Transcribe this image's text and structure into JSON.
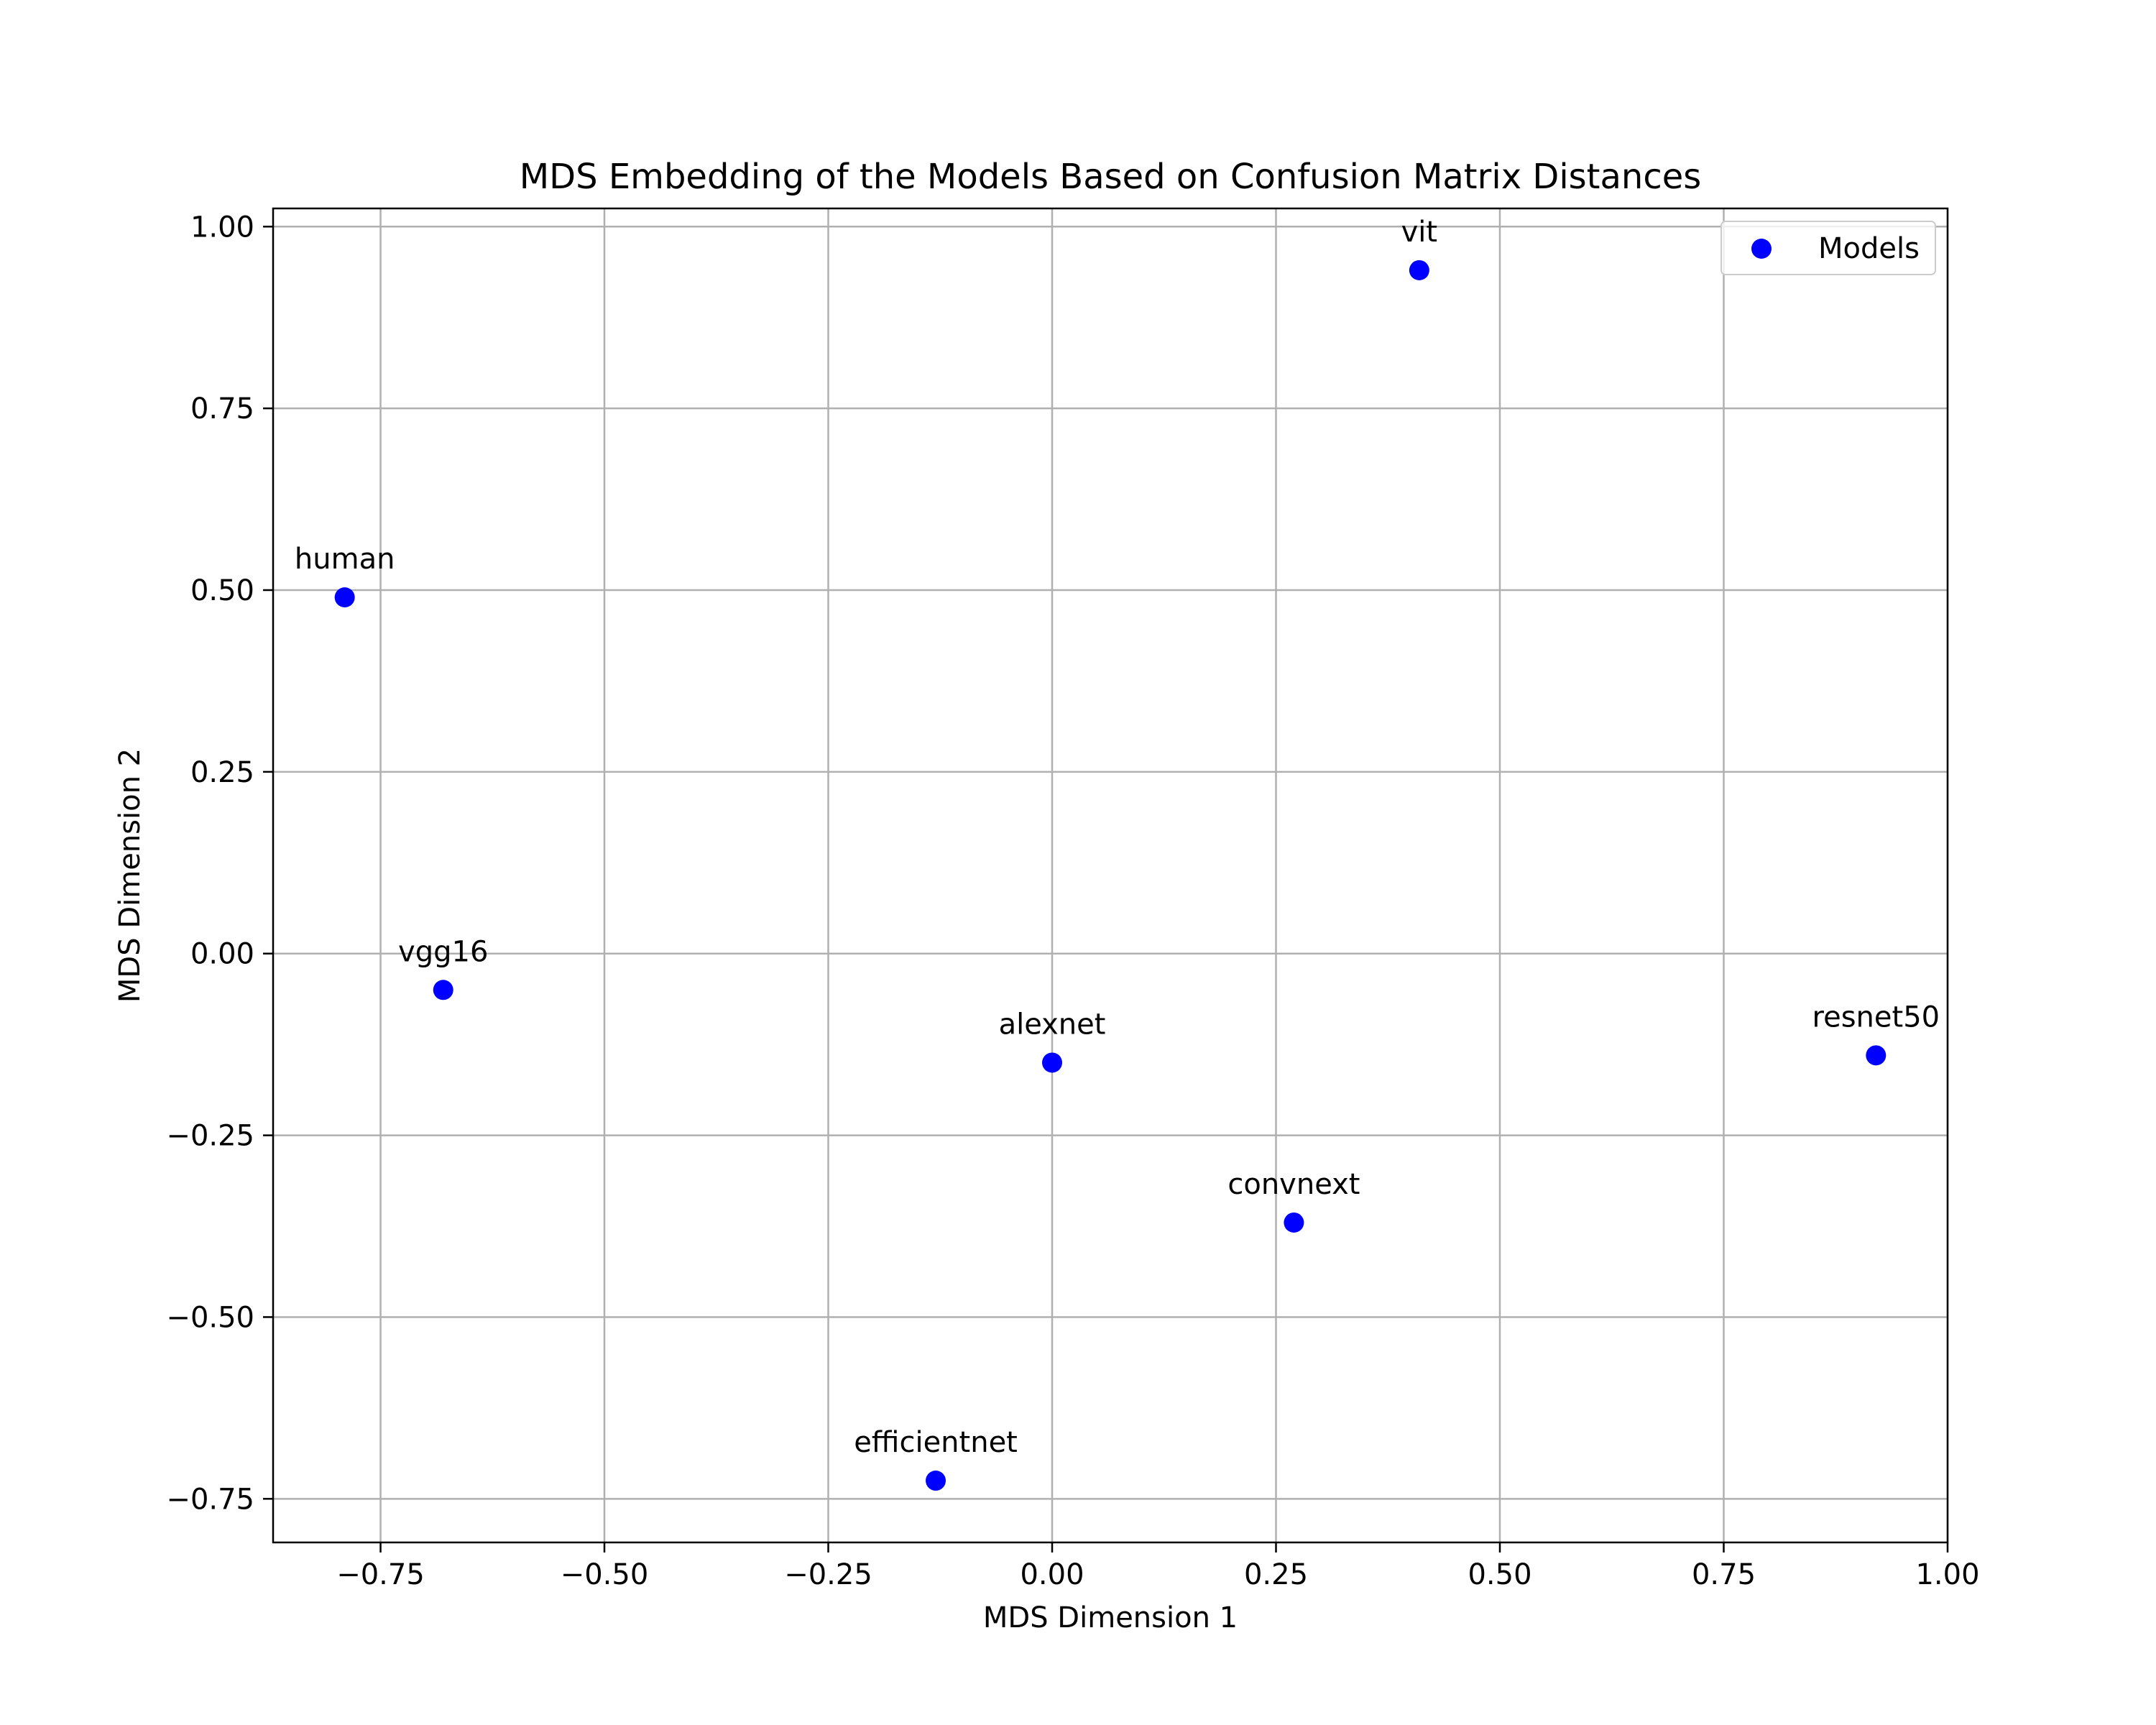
{
  "chart_data": {
    "type": "scatter",
    "title": "MDS Embedding of the Models Based on Confusion Matrix Distances",
    "xlabel": "MDS Dimension 1",
    "ylabel": "MDS Dimension 2",
    "xlim": [
      -0.87,
      1.0
    ],
    "ylim": [
      -0.81,
      1.025
    ],
    "xticks": [
      -0.75,
      -0.5,
      -0.25,
      0.0,
      0.25,
      0.5,
      0.75,
      1.0
    ],
    "xtick_labels": [
      "−0.75",
      "−0.50",
      "−0.25",
      "0.00",
      "0.25",
      "0.50",
      "0.75",
      "1.00"
    ],
    "yticks": [
      -0.75,
      -0.5,
      -0.25,
      0.0,
      0.25,
      0.5,
      0.75,
      1.0
    ],
    "ytick_labels": [
      "−0.75",
      "−0.50",
      "−0.25",
      "0.00",
      "0.25",
      "0.50",
      "0.75",
      "1.00"
    ],
    "grid": true,
    "legend": {
      "position": "top-right",
      "entries": [
        "Models"
      ]
    },
    "series": [
      {
        "name": "Models",
        "color": "#0000ff",
        "points": [
          {
            "label": "vit",
            "x": 0.41,
            "y": 0.94
          },
          {
            "label": "human",
            "x": -0.79,
            "y": 0.49
          },
          {
            "label": "vgg16",
            "x": -0.68,
            "y": -0.05
          },
          {
            "label": "alexnet",
            "x": 0.0,
            "y": -0.15
          },
          {
            "label": "resnet50",
            "x": 0.92,
            "y": -0.14
          },
          {
            "label": "convnext",
            "x": 0.27,
            "y": -0.37
          },
          {
            "label": "efficientnet",
            "x": -0.13,
            "y": -0.725
          }
        ]
      }
    ],
    "colors": {
      "grid": "#b0b0b0",
      "axes": "#000000",
      "marker": "#0000ff"
    }
  }
}
